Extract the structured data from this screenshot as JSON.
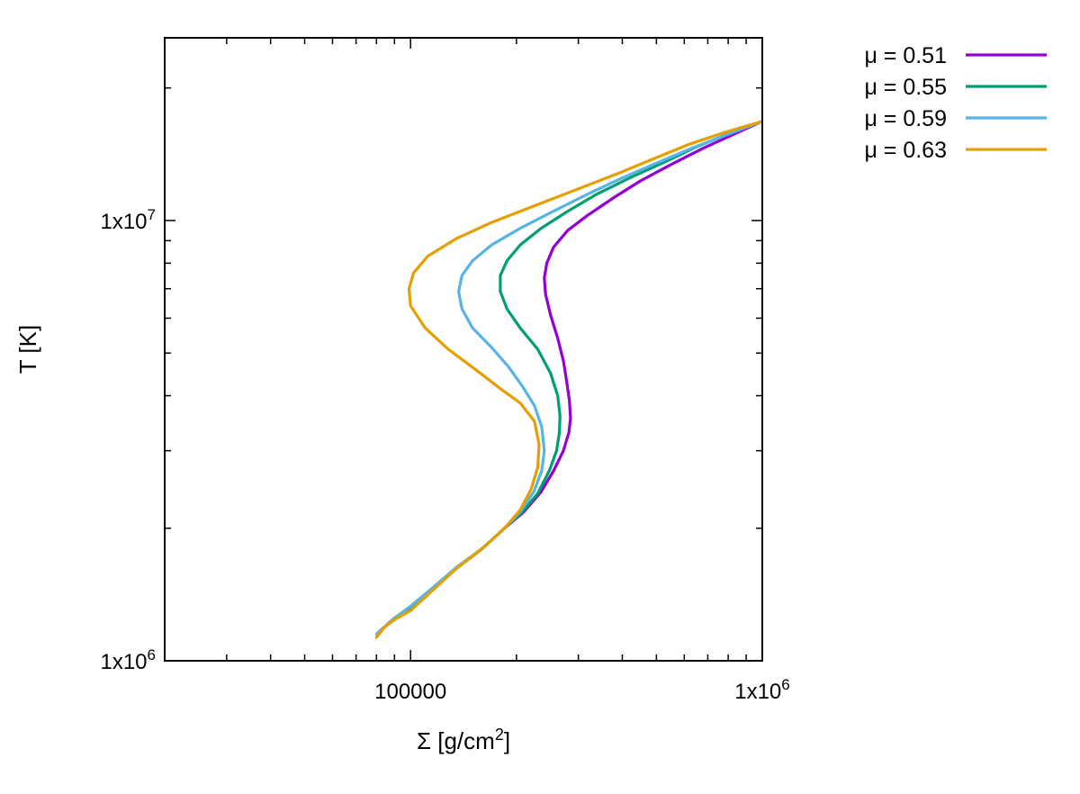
{
  "chart_data": {
    "type": "line",
    "title": "",
    "xlabel": {
      "base": "Σ [g/cm",
      "sup": "2",
      "tail": "]"
    },
    "ylabel": "T [K]",
    "xscale": "log",
    "yscale": "log",
    "xlim": [
      20000,
      1000000
    ],
    "ylim": [
      1000000,
      26000000
    ],
    "xticks": [
      {
        "value": 100000,
        "label": "100000",
        "sup": ""
      },
      {
        "value": 1000000,
        "label": "1x10",
        "sup": "6"
      }
    ],
    "yticks": [
      {
        "value": 1000000,
        "label": "1x10",
        "sup": "6"
      },
      {
        "value": 10000000,
        "label": "1x10",
        "sup": "7"
      }
    ],
    "legend_position": "outside-top-right",
    "series": [
      {
        "name": "μ = 0.51",
        "color": "#9400d3",
        "points": [
          [
            81000,
            1160000
          ],
          [
            85000,
            1200000
          ],
          [
            90000,
            1250000
          ],
          [
            100000,
            1310000
          ],
          [
            115000,
            1450000
          ],
          [
            135000,
            1620000
          ],
          [
            160000,
            1800000
          ],
          [
            185000,
            2000000
          ],
          [
            210000,
            2180000
          ],
          [
            235000,
            2420000
          ],
          [
            255000,
            2700000
          ],
          [
            272000,
            3000000
          ],
          [
            282000,
            3300000
          ],
          [
            285000,
            3550000
          ],
          [
            283000,
            3900000
          ],
          [
            278000,
            4300000
          ],
          [
            272000,
            4800000
          ],
          [
            262000,
            5400000
          ],
          [
            250000,
            6100000
          ],
          [
            242000,
            6800000
          ],
          [
            240000,
            7400000
          ],
          [
            244000,
            8000000
          ],
          [
            255000,
            8700000
          ],
          [
            280000,
            9500000
          ],
          [
            320000,
            10300000
          ],
          [
            380000,
            11300000
          ],
          [
            450000,
            12300000
          ],
          [
            550000,
            13400000
          ],
          [
            680000,
            14600000
          ],
          [
            830000,
            15700000
          ],
          [
            1000000,
            16800000
          ]
        ]
      },
      {
        "name": "μ = 0.55",
        "color": "#009e73",
        "points": [
          [
            81000,
            1160000
          ],
          [
            85000,
            1200000
          ],
          [
            90000,
            1250000
          ],
          [
            100000,
            1310000
          ],
          [
            115000,
            1450000
          ],
          [
            135000,
            1620000
          ],
          [
            160000,
            1800000
          ],
          [
            185000,
            2000000
          ],
          [
            208000,
            2180000
          ],
          [
            230000,
            2400000
          ],
          [
            248000,
            2700000
          ],
          [
            260000,
            3000000
          ],
          [
            265000,
            3300000
          ],
          [
            266000,
            3600000
          ],
          [
            262000,
            4000000
          ],
          [
            250000,
            4500000
          ],
          [
            230000,
            5100000
          ],
          [
            205000,
            5700000
          ],
          [
            188000,
            6300000
          ],
          [
            180000,
            6900000
          ],
          [
            180000,
            7500000
          ],
          [
            188000,
            8100000
          ],
          [
            205000,
            8800000
          ],
          [
            235000,
            9600000
          ],
          [
            280000,
            10500000
          ],
          [
            340000,
            11500000
          ],
          [
            420000,
            12500000
          ],
          [
            520000,
            13500000
          ],
          [
            650000,
            14700000
          ],
          [
            810000,
            15800000
          ],
          [
            1000000,
            16800000
          ]
        ]
      },
      {
        "name": "μ = 0.59",
        "color": "#56b4e9",
        "points": [
          [
            80000,
            1150000
          ],
          [
            85000,
            1200000
          ],
          [
            90000,
            1250000
          ],
          [
            100000,
            1330000
          ],
          [
            115000,
            1460000
          ],
          [
            135000,
            1630000
          ],
          [
            160000,
            1800000
          ],
          [
            185000,
            2000000
          ],
          [
            205000,
            2180000
          ],
          [
            224000,
            2420000
          ],
          [
            236000,
            2700000
          ],
          [
            240000,
            3000000
          ],
          [
            236000,
            3400000
          ],
          [
            225000,
            3800000
          ],
          [
            208000,
            4200000
          ],
          [
            190000,
            4650000
          ],
          [
            170000,
            5150000
          ],
          [
            150000,
            5700000
          ],
          [
            140000,
            6300000
          ],
          [
            137000,
            6900000
          ],
          [
            140000,
            7500000
          ],
          [
            150000,
            8100000
          ],
          [
            170000,
            8800000
          ],
          [
            205000,
            9600000
          ],
          [
            255000,
            10500000
          ],
          [
            320000,
            11500000
          ],
          [
            400000,
            12500000
          ],
          [
            500000,
            13500000
          ],
          [
            630000,
            14600000
          ],
          [
            800000,
            15700000
          ],
          [
            1000000,
            16800000
          ]
        ]
      },
      {
        "name": "μ = 0.63",
        "color": "#e69f00",
        "points": [
          [
            80000,
            1130000
          ],
          [
            84000,
            1190000
          ],
          [
            90000,
            1240000
          ],
          [
            100000,
            1300000
          ],
          [
            115000,
            1440000
          ],
          [
            135000,
            1620000
          ],
          [
            160000,
            1800000
          ],
          [
            185000,
            2000000
          ],
          [
            205000,
            2200000
          ],
          [
            220000,
            2450000
          ],
          [
            230000,
            2750000
          ],
          [
            232000,
            3100000
          ],
          [
            225000,
            3500000
          ],
          [
            205000,
            3850000
          ],
          [
            180000,
            4150000
          ],
          [
            155000,
            4550000
          ],
          [
            128000,
            5100000
          ],
          [
            110000,
            5700000
          ],
          [
            100000,
            6400000
          ],
          [
            99000,
            7000000
          ],
          [
            102000,
            7600000
          ],
          [
            112000,
            8300000
          ],
          [
            135000,
            9100000
          ],
          [
            170000,
            9900000
          ],
          [
            225000,
            10800000
          ],
          [
            300000,
            11800000
          ],
          [
            390000,
            12800000
          ],
          [
            490000,
            13800000
          ],
          [
            620000,
            14900000
          ],
          [
            790000,
            15900000
          ],
          [
            1000000,
            16800000
          ]
        ]
      }
    ]
  }
}
